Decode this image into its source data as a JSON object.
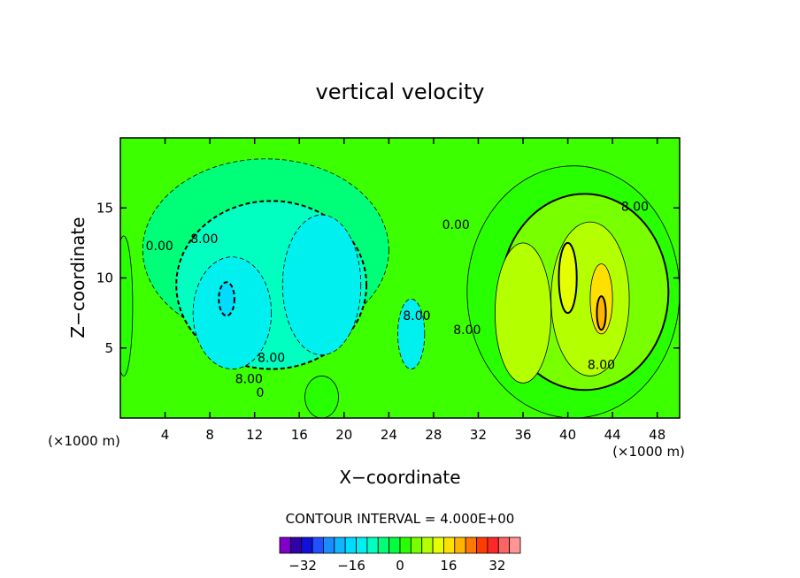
{
  "chart_data": {
    "type": "contour",
    "title": "vertical velocity",
    "xlabel": "X−coordinate",
    "ylabel": "Z−coordinate",
    "x_unit_left": "(×1000 m)",
    "x_unit_right": "(×1000 m)",
    "xlim": [
      0,
      50
    ],
    "ylim": [
      0,
      20
    ],
    "xticks": [
      4,
      8,
      12,
      16,
      20,
      24,
      28,
      32,
      36,
      40,
      44,
      48
    ],
    "yticks": [
      5,
      10,
      15
    ],
    "contour_interval_label": "CONTOUR INTERVAL = 4.000E+00",
    "contour_interval": 4,
    "contour_labels": [
      {
        "text": "0.00",
        "x": 3.5,
        "y": 12.0
      },
      {
        "text": "8.00",
        "x": 7.5,
        "y": 12.5
      },
      {
        "text": "8.00",
        "x": 13.5,
        "y": 4.0
      },
      {
        "text": "8.00",
        "x": 11.5,
        "y": 2.5
      },
      {
        "text": "0",
        "x": 12.5,
        "y": 1.5
      },
      {
        "text": "8.00",
        "x": 26.5,
        "y": 7.0
      },
      {
        "text": "0.00",
        "x": 30.0,
        "y": 13.5
      },
      {
        "text": "8.00",
        "x": 46.0,
        "y": 14.8
      },
      {
        "text": "8.00",
        "x": 31.0,
        "y": 6.0
      },
      {
        "text": "8.00",
        "x": 43.0,
        "y": 3.5
      }
    ],
    "colorbar": {
      "levels": [
        -36,
        -32,
        -28,
        -24,
        -20,
        -16,
        -12,
        -8,
        -4,
        0,
        4,
        8,
        12,
        16,
        20,
        24,
        28,
        32,
        36
      ],
      "colors": [
        "#8000c8",
        "#3000a8",
        "#1010d8",
        "#2050ff",
        "#1a8cff",
        "#10b4ff",
        "#00dcff",
        "#00f0f0",
        "#00ffc0",
        "#00ff78",
        "#00ff3c",
        "#28ff00",
        "#78ff00",
        "#b4ff00",
        "#e6ff00",
        "#ffe000",
        "#ffb400",
        "#ff7800",
        "#ff3c00",
        "#ff2828",
        "#ff6464",
        "#ff9696"
      ],
      "tick_labels": [
        {
          "text": "−32",
          "value": -32
        },
        {
          "text": "−16",
          "value": -16
        },
        {
          "text": "0",
          "value": 0
        },
        {
          "text": "16",
          "value": 16
        },
        {
          "text": "32",
          "value": 32
        }
      ]
    },
    "regions": [
      {
        "sign": "down",
        "level": -4,
        "x": 13.0,
        "y": 12.0,
        "rx": 11.0,
        "ry": 6.5
      },
      {
        "sign": "down",
        "level": -8,
        "x": 13.5,
        "y": 9.5,
        "rx": 8.5,
        "ry": 6.0
      },
      {
        "sign": "down",
        "level": -12,
        "x": 10.0,
        "y": 7.5,
        "rx": 3.5,
        "ry": 4.0
      },
      {
        "sign": "down",
        "level": -12,
        "x": 18.0,
        "y": 9.5,
        "rx": 3.5,
        "ry": 5.0
      },
      {
        "sign": "down",
        "level": -12,
        "x": 26.0,
        "y": 6.0,
        "rx": 1.2,
        "ry": 2.5
      },
      {
        "sign": "down",
        "level": -16,
        "x": 9.5,
        "y": 8.5,
        "rx": 0.7,
        "ry": 1.2
      },
      {
        "sign": "up",
        "level": 4,
        "x": 40.5,
        "y": 9.0,
        "rx": 9.5,
        "ry": 9.0
      },
      {
        "sign": "up",
        "level": 8,
        "x": 41.5,
        "y": 9.0,
        "rx": 7.5,
        "ry": 7.0
      },
      {
        "sign": "up",
        "level": 12,
        "x": 36.0,
        "y": 7.5,
        "rx": 2.5,
        "ry": 5.0
      },
      {
        "sign": "up",
        "level": 12,
        "x": 42.0,
        "y": 8.5,
        "rx": 3.5,
        "ry": 5.5
      },
      {
        "sign": "up",
        "level": 16,
        "x": 40.0,
        "y": 10.0,
        "rx": 0.8,
        "ry": 2.5
      },
      {
        "sign": "up",
        "level": 20,
        "x": 43.0,
        "y": 8.5,
        "rx": 1.0,
        "ry": 2.5
      },
      {
        "sign": "up",
        "level": 24,
        "x": 43.0,
        "y": 7.5,
        "rx": 0.4,
        "ry": 1.2
      },
      {
        "sign": "up",
        "level": 4,
        "x": 18.0,
        "y": 1.5,
        "rx": 1.5,
        "ry": 1.5
      },
      {
        "sign": "up",
        "level": 4,
        "x": 0.3,
        "y": 8.0,
        "rx": 0.8,
        "ry": 5.0
      }
    ]
  }
}
